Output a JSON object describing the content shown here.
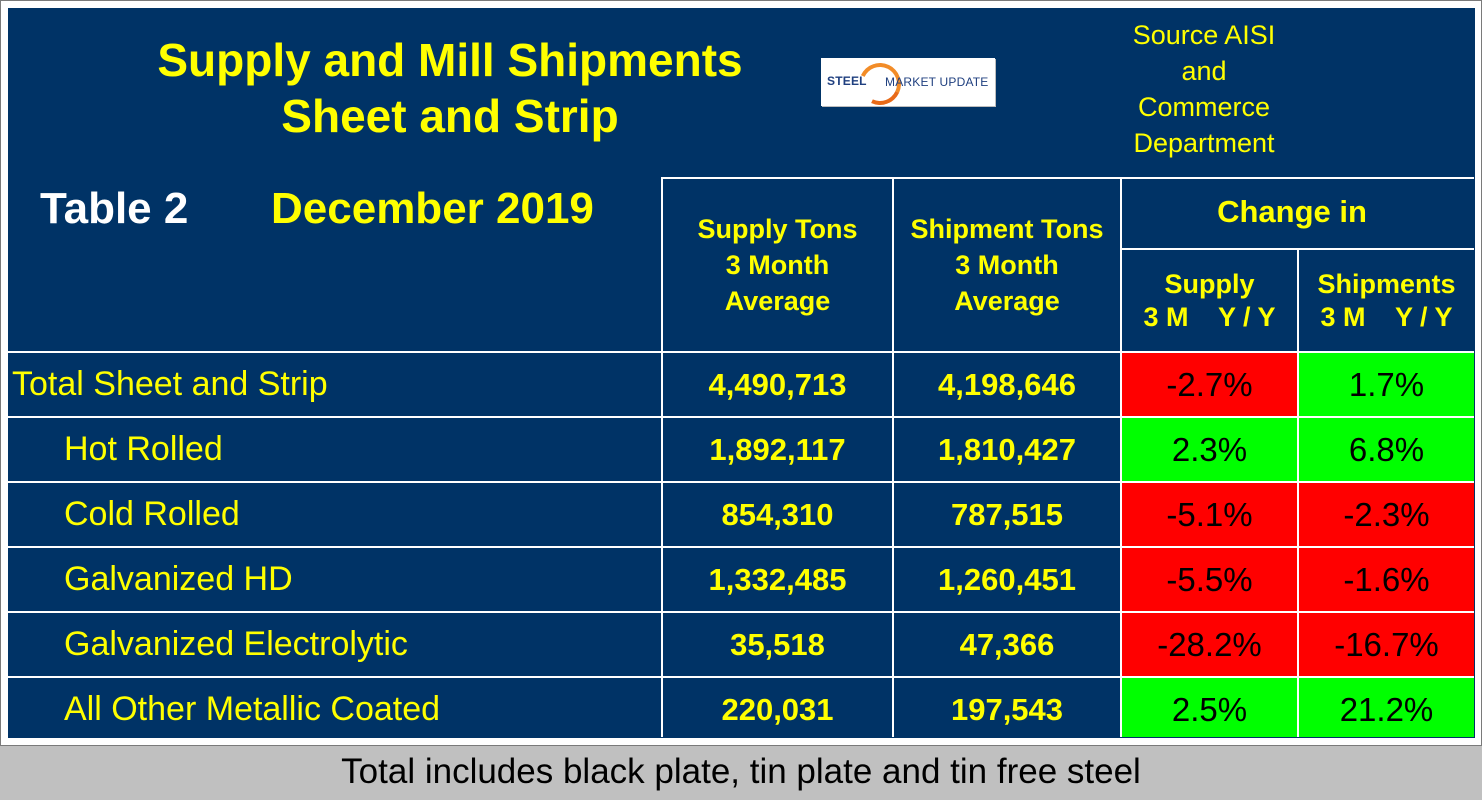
{
  "title": {
    "line1": "Supply and Mill Shipments",
    "line2": "Sheet and Strip"
  },
  "logo": {
    "steel": "STEEL",
    "market_update": "MARKET UPDATE"
  },
  "source": [
    "Source AISI",
    "and",
    "Commerce",
    "Department"
  ],
  "table_label": "Table 2",
  "report_date": "December 2019",
  "headers": {
    "supply": [
      "Supply Tons",
      "3 Month",
      "Average"
    ],
    "shipment": [
      "Shipment Tons",
      "3 Month",
      "Average"
    ],
    "change_in": "Change in",
    "change_supply": [
      "Supply",
      "3 M    Y / Y"
    ],
    "change_shipments": [
      "Shipments",
      "3 M    Y / Y"
    ]
  },
  "rows": [
    {
      "label": "Total Sheet and Strip",
      "supply": "4,490,713",
      "shipments": "4,198,646",
      "supply_change": "-2.7%",
      "shipments_change": "1.7%"
    },
    {
      "label": "Hot Rolled",
      "supply": "1,892,117",
      "shipments": "1,810,427",
      "supply_change": "2.3%",
      "shipments_change": "6.8%"
    },
    {
      "label": "Cold Rolled",
      "supply": "854,310",
      "shipments": "787,515",
      "supply_change": "-5.1%",
      "shipments_change": "-2.3%"
    },
    {
      "label": "Galvanized HD",
      "supply": "1,332,485",
      "shipments": "1,260,451",
      "supply_change": "-5.5%",
      "shipments_change": "-1.6%"
    },
    {
      "label": "Galvanized Electrolytic",
      "supply": "35,518",
      "shipments": "47,366",
      "supply_change": "-28.2%",
      "shipments_change": "-16.7%"
    },
    {
      "label": "All Other Metallic Coated",
      "supply": "220,031",
      "shipments": "197,543",
      "supply_change": "2.5%",
      "shipments_change": "21.2%"
    }
  ],
  "colors": {
    "panel": "#003366",
    "text_yellow": "#ffff00",
    "positive": "#00ff00",
    "negative": "#ff0000"
  },
  "footnote": "Total includes black plate, tin plate and tin free steel"
}
